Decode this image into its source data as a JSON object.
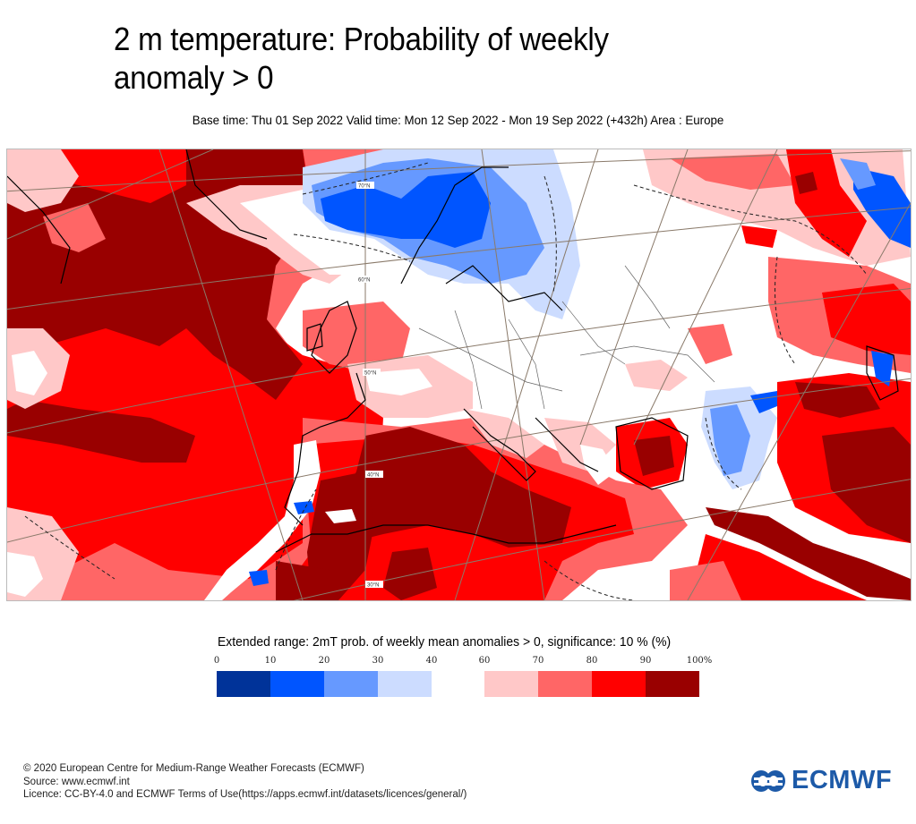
{
  "header": {
    "title_line1": "2 m temperature: Probability of weekly",
    "title_line2": "anomaly > 0",
    "subtitle": "Base time: Thu 01 Sep 2022 Valid time: Mon 12 Sep 2022 - Mon 19 Sep 2022 (+432h) Area : Europe"
  },
  "map": {
    "area": "Europe",
    "parameter": "2mT probability of weekly mean anomaly > 0",
    "latitude_labels": [
      "70°N",
      "60°N",
      "50°N",
      "40°N",
      "30°N"
    ],
    "colors": {
      "p0_10": "#003399",
      "p10_20": "#0055ff",
      "p20_30": "#6699ff",
      "p30_40": "#ccdcff",
      "p40_60": "#ffffff",
      "p60_70": "#ffc8c8",
      "p70_80": "#ff6666",
      "p80_90": "#ff0000",
      "p90_100": "#990000",
      "coastline": "#000000",
      "graticule": "#7a6a5a",
      "border": "#555555"
    }
  },
  "legend": {
    "title": "Extended range: 2mT prob. of weekly mean anomalies > 0, significance: 10 % (%)",
    "ticks": [
      "0",
      "10",
      "20",
      "30",
      "40",
      "60",
      "70",
      "80",
      "90",
      "100%"
    ],
    "bins": [
      {
        "from": 0,
        "to": 10,
        "color": "#003399"
      },
      {
        "from": 10,
        "to": 20,
        "color": "#0055ff"
      },
      {
        "from": 20,
        "to": 30,
        "color": "#6699ff"
      },
      {
        "from": 30,
        "to": 40,
        "color": "#ccdcff"
      },
      {
        "from": 60,
        "to": 70,
        "color": "#ffc8c8"
      },
      {
        "from": 70,
        "to": 80,
        "color": "#ff6666"
      },
      {
        "from": 80,
        "to": 90,
        "color": "#ff0000"
      },
      {
        "from": 90,
        "to": 100,
        "color": "#990000"
      }
    ]
  },
  "footer": {
    "copyright": "© 2020 European Centre for Medium-Range Weather Forecasts (ECMWF)",
    "source": "Source: www.ecmwf.int",
    "licence": "Licence: CC-BY-4.0 and ECMWF Terms of Use(https://apps.ecmwf.int/datasets/licences/general/)"
  },
  "logo": {
    "text": "ECMWF",
    "color": "#1d5aa8"
  }
}
